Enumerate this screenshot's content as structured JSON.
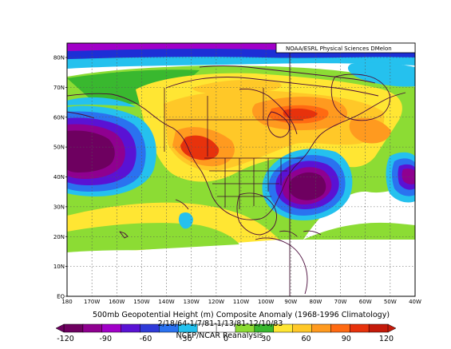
{
  "credit": "NOAA/ESRL Physical Sciences DMelon",
  "caption": {
    "line1": "500mb Geopotential Height (m) Composite Anomaly (1968-1996 Climatology)",
    "line2": "2/18/64-1/7/81-1/13/81-12/10/83",
    "source": "NCEP/NCAR Reanalysis"
  },
  "axes": {
    "lat_labels": [
      "80N",
      "70N",
      "60N",
      "50N",
      "40N",
      "30N",
      "20N",
      "10N",
      "EQ"
    ],
    "lon_labels": [
      "180",
      "170W",
      "160W",
      "150W",
      "140W",
      "130W",
      "120W",
      "110W",
      "100W",
      "90W",
      "80W",
      "70W",
      "60W",
      "50W",
      "40W"
    ]
  },
  "colorbar": {
    "labels": [
      "-120",
      "-90",
      "-60",
      "-30",
      "0",
      "30",
      "60",
      "90",
      "120"
    ],
    "colors": [
      "#6e0060",
      "#8f0090",
      "#a100c8",
      "#5a12d4",
      "#2f3ad8",
      "#2a72f0",
      "#25c1ee",
      "#ffffff",
      "#ffffff",
      "#8cdc34",
      "#39b82f",
      "#ffe633",
      "#ffc828",
      "#ff9a1f",
      "#ff6a12",
      "#e7320c",
      "#c41a0a"
    ]
  },
  "colors": {
    "coast": "#4a0a3a",
    "border": "#3a0a2a",
    "grid": "#555555"
  }
}
